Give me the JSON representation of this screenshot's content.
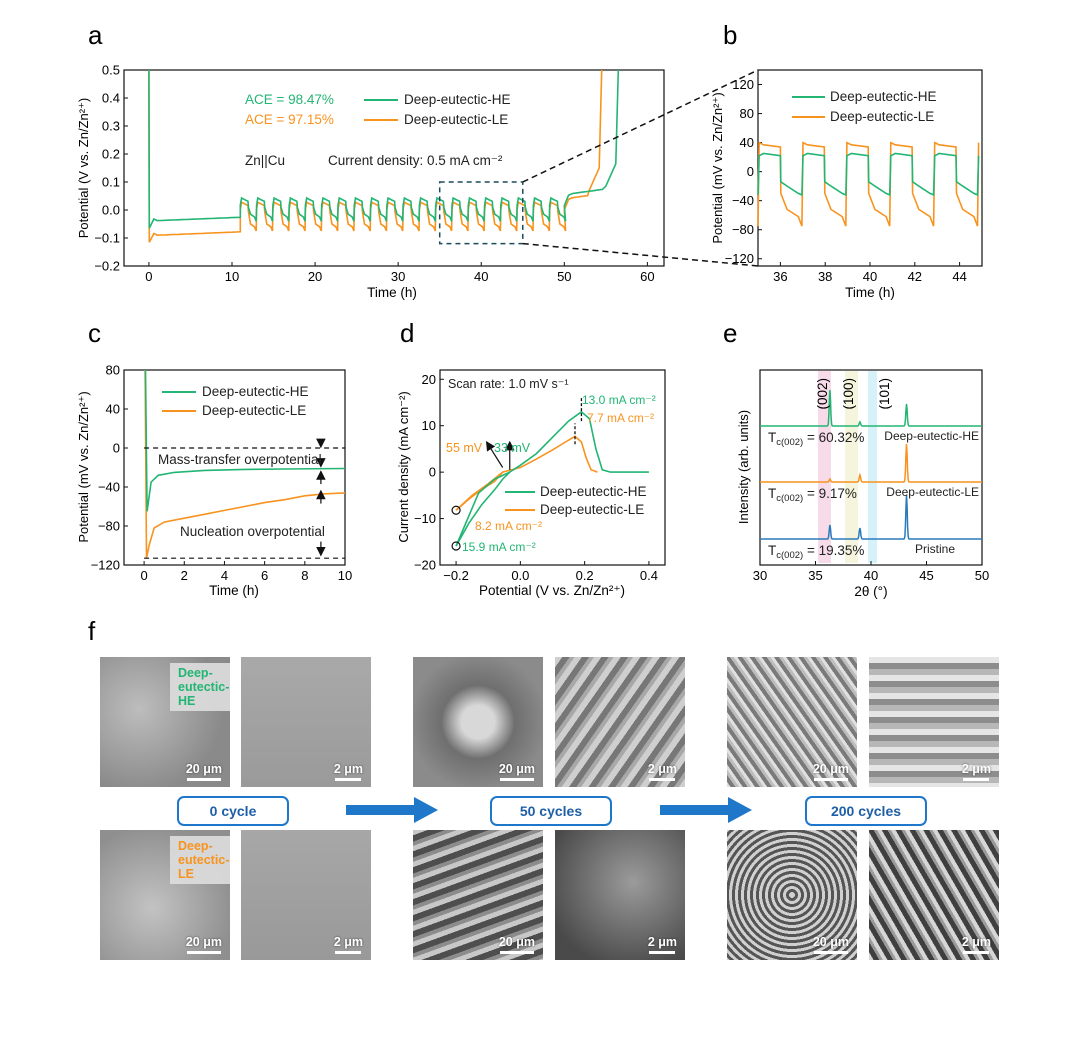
{
  "panels": {
    "a": "a",
    "b": "b",
    "c": "c",
    "d": "d",
    "e": "e",
    "f": "f"
  },
  "colors": {
    "he": "#22b573",
    "le": "#f7931e",
    "pristine": "#2b7bba",
    "axis": "#111111",
    "dash": "#333333",
    "box": "#1f77c9"
  },
  "chart_data": [
    {
      "id": "a",
      "type": "line",
      "xlabel": "Time (h)",
      "ylabel": "Potential (V vs. Zn/Zn²⁺)",
      "xlim": [
        -3,
        62
      ],
      "ylim": [
        -0.2,
        0.5
      ],
      "xticks": [
        0,
        10,
        20,
        30,
        40,
        50,
        60
      ],
      "yticks": [
        -0.2,
        -0.1,
        0.0,
        0.1,
        0.2,
        0.3,
        0.4,
        0.5
      ],
      "ytick_labels": [
        "−0.2",
        "−0.1",
        "0.0",
        "0.1",
        "0.2",
        "0.3",
        "0.4",
        "0.5"
      ],
      "series": [
        {
          "name": "Deep-eutectic-HE",
          "color": "#22b573"
        },
        {
          "name": "Deep-eutectic-LE",
          "color": "#f7931e"
        }
      ],
      "annotations": [
        "ACE = 98.47%",
        "ACE = 97.15%",
        "Zn||Cu",
        "Current density: 0.5 mA cm⁻²"
      ],
      "zoom_box": {
        "x": [
          35,
          45
        ],
        "y": [
          -0.12,
          0.1
        ]
      }
    },
    {
      "id": "b",
      "type": "line",
      "xlabel": "Time (h)",
      "ylabel": "Potential (mV vs. Zn/Zn²⁺)",
      "xlim": [
        35,
        45
      ],
      "ylim": [
        -130,
        140
      ],
      "xticks": [
        36,
        38,
        40,
        42,
        44
      ],
      "yticks": [
        -120,
        -80,
        -40,
        0,
        40,
        80,
        120
      ],
      "ytick_labels": [
        "−120",
        "−80",
        "−40",
        "0",
        "40",
        "80",
        "120"
      ],
      "series": [
        {
          "name": "Deep-eutectic-HE",
          "color": "#22b573"
        },
        {
          "name": "Deep-eutectic-LE",
          "color": "#f7931e"
        }
      ]
    },
    {
      "id": "c",
      "type": "line",
      "xlabel": "Time (h)",
      "ylabel": "Potential (mV vs. Zn/Zn²⁺)",
      "xlim": [
        -1,
        10
      ],
      "ylim": [
        -120,
        80
      ],
      "xticks": [
        0,
        2,
        4,
        6,
        8,
        10
      ],
      "yticks": [
        -120,
        -80,
        -40,
        0,
        40,
        80
      ],
      "ytick_labels": [
        "−120",
        "−80",
        "−40",
        "0",
        "40",
        "80"
      ],
      "series": [
        {
          "name": "Deep-eutectic-HE",
          "color": "#22b573",
          "plateau_mV": -21,
          "min_mV": -65
        },
        {
          "name": "Deep-eutectic-LE",
          "color": "#f7931e",
          "plateau_mV": -46,
          "min_mV": -113
        }
      ],
      "annotations": [
        "Mass-transfer overpotential",
        "Nucleation overpotential"
      ]
    },
    {
      "id": "d",
      "type": "line",
      "xlabel": "Potential (V vs. Zn/Zn²⁺)",
      "ylabel": "Current density (mA cm⁻²)",
      "xlim": [
        -0.25,
        0.45
      ],
      "ylim": [
        -20,
        22
      ],
      "xticks": [
        -0.2,
        0.0,
        0.2,
        0.4
      ],
      "xtick_labels": [
        "−0.2",
        "0.0",
        "0.2",
        "0.4"
      ],
      "yticks": [
        -20,
        -10,
        0,
        10,
        20
      ],
      "ytick_labels": [
        "−20",
        "−10",
        "0",
        "10",
        "20"
      ],
      "series": [
        {
          "name": "Deep-eutectic-HE",
          "color": "#22b573",
          "peak_mA": 13.0,
          "peak_V": 0.19,
          "min_mA": -15.9
        },
        {
          "name": "Deep-eutectic-LE",
          "color": "#f7931e",
          "peak_mA": 7.7,
          "peak_V": 0.17,
          "min_mA": -8.2
        }
      ],
      "annotations": [
        "Scan rate: 1.0 mV s⁻¹",
        "13.0 mA cm⁻²",
        "7.7 mA cm⁻²",
        "55 mV",
        "33 mV",
        "8.2 mA cm⁻²",
        "15.9 mA cm⁻²"
      ]
    },
    {
      "id": "e",
      "type": "line",
      "xlabel": "2θ (°)",
      "ylabel": "Intensity (arb. units)",
      "xlim": [
        30,
        50
      ],
      "xticks": [
        30,
        35,
        40,
        45,
        50
      ],
      "peaks": [
        {
          "label": "(002)",
          "two_theta": 36.3
        },
        {
          "label": "(100)",
          "two_theta": 39.0
        },
        {
          "label": "(101)",
          "two_theta": 43.2
        }
      ],
      "series": [
        {
          "name": "Deep-eutectic-HE",
          "color": "#22b573",
          "tc": "60.32%"
        },
        {
          "name": "Deep-eutectic-LE",
          "color": "#f7931e",
          "tc": "9.17%"
        },
        {
          "name": "Pristine",
          "color": "#2b7bba",
          "tc": "19.35%"
        }
      ]
    }
  ],
  "text": {
    "a_ace_he": "ACE = 98.47%",
    "a_ace_le": "ACE = 97.15%",
    "a_leg_he": "Deep-eutectic-HE",
    "a_leg_le": "Deep-eutectic-LE",
    "a_cell": "Zn||Cu",
    "a_cd": "Current density: 0.5 mA cm⁻²",
    "a_xl": "Time (h)",
    "a_yl": "Potential (V vs. Zn/Zn²⁺)",
    "b_leg_he": "Deep-eutectic-HE",
    "b_leg_le": "Deep-eutectic-LE",
    "b_xl": "Time (h)",
    "b_yl": "Potential (mV vs. Zn/Zn²⁺)",
    "c_leg_he": "Deep-eutectic-HE",
    "c_leg_le": "Deep-eutectic-LE",
    "c_mass": "Mass-transfer overpotential",
    "c_nuc": "Nucleation overpotential",
    "c_xl": "Time (h)",
    "c_yl": "Potential (mV vs. Zn/Zn²⁺)",
    "d_scan": "Scan rate: 1.0 mV s⁻¹",
    "d_pk_he": "13.0 mA cm⁻²",
    "d_pk_le": "7.7 mA cm⁻²",
    "d_55": "55 mV",
    "d_33": "33 mV",
    "d_min_le": "8.2 mA cm⁻²",
    "d_min_he": "15.9 mA cm⁻²",
    "d_leg_he": "Deep-eutectic-HE",
    "d_leg_le": "Deep-eutectic-LE",
    "d_xl": "Potential (V vs. Zn/Zn²⁺)",
    "d_yl": "Current density (mA cm⁻²)",
    "e_002": "(002)",
    "e_100": "(100)",
    "e_101": "(101)",
    "e_tc_he": "60.32%",
    "e_tc_le": "9.17%",
    "e_tc_pr": "19.35%",
    "e_tc_prefix": "T",
    "e_tc_sub": "c(002)",
    "e_tc_eq": " = ",
    "e_name_he": "Deep-eutectic-HE",
    "e_name_le": "Deep-eutectic-LE",
    "e_name_pr": "Pristine",
    "e_xl": "2θ (°)",
    "e_yl": "Intensity (arb. units)"
  },
  "sem": {
    "label_he": "Deep-eutectic-HE",
    "label_le": "Deep-eutectic-LE",
    "scale_20": "20 μm",
    "scale_2": "2 μm",
    "cycles": [
      "0 cycle",
      "50 cycles",
      "200 cycles"
    ]
  }
}
